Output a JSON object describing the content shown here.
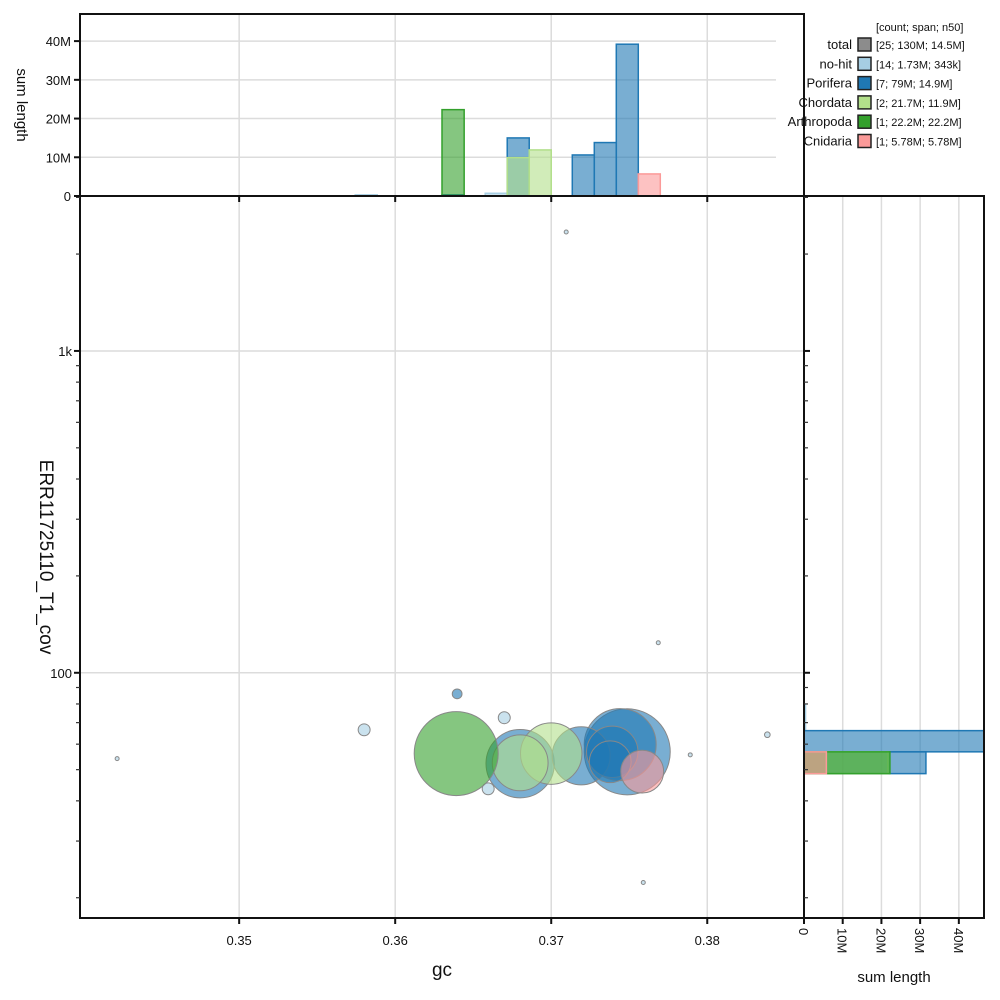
{
  "chart_data": {
    "type": "scatter",
    "xlabel": "gc",
    "ylabel": "ERR11725110_T1_cov",
    "xlim": [
      0.3398,
      0.3862
    ],
    "ylim": [
      17.3,
      3030
    ],
    "yscale": "log",
    "x_ticks": [
      "0.35",
      "0.36",
      "0.37",
      "0.38"
    ],
    "x_tick_values": [
      0.35,
      0.36,
      0.37,
      0.38
    ],
    "y_ticks": [
      "100",
      "1k"
    ],
    "y_tick_values": [
      100,
      1000
    ],
    "grid": true,
    "top_histogram": {
      "ylabel": "sum length",
      "ylim": [
        0,
        47000000
      ],
      "y_ticks": [
        "0",
        "10M",
        "20M",
        "30M",
        "40M"
      ],
      "y_tick_values": [
        0,
        10000000,
        20000000,
        30000000,
        40000000
      ]
    },
    "right_histogram": {
      "xlabel": "sum length",
      "xlim": [
        0,
        46500000
      ],
      "x_ticks": [
        "0",
        "10M",
        "20M",
        "30M",
        "40M"
      ],
      "x_tick_values": [
        0,
        10000000,
        20000000,
        30000000,
        40000000
      ]
    },
    "legend": {
      "placement": "top-right",
      "header": "[count; span; n50]",
      "entries": [
        {
          "name": "total",
          "stats": "[25; 130M; 14.5M]",
          "color": "#8c8c8c"
        },
        {
          "name": "no-hit",
          "stats": "[14; 1.73M; 343k]",
          "color": "#a6cee3"
        },
        {
          "name": "Porifera",
          "stats": "[7; 79M; 14.9M]",
          "color": "#1f78b4"
        },
        {
          "name": "Chordata",
          "stats": "[2; 21.7M; 11.9M]",
          "color": "#b2df8a"
        },
        {
          "name": "Arthropoda",
          "stats": "[1; 22.2M; 22.2M]",
          "color": "#33a02c"
        },
        {
          "name": "Cnidaria",
          "stats": "[1; 5.78M; 5.78M]",
          "color": "#fb9a99"
        }
      ]
    },
    "series": [
      {
        "name": "no-hit",
        "color": "#a6cee3",
        "points": [
          [
            0.36699,
            72.5,
            450000
          ],
          [
            0.35801,
            66.5,
            450000
          ],
          [
            0.36596,
            43.6,
            450000
          ],
          [
            0.37096,
            2342,
            50000
          ],
          [
            0.37686,
            124,
            50000
          ],
          [
            0.38385,
            64.2,
            100000
          ],
          [
            0.37891,
            55.6,
            50000
          ],
          [
            0.3759,
            22.3,
            50000
          ],
          [
            0.34218,
            54.1,
            50000
          ]
        ],
        "gc_hist": [
          [
            0.35744,
            0.35885,
            300000
          ],
          [
            0.36577,
            0.36718,
            700000
          ]
        ],
        "cov_hist": [
          [
            66.1,
            79.6,
            400000
          ],
          [
            48.6,
            56.8,
            200000
          ]
        ]
      },
      {
        "name": "Porifera",
        "color": "#1f78b4",
        "points": [
          [
            0.37487,
            56.8,
            23300000
          ],
          [
            0.37442,
            59.8,
            16300000
          ],
          [
            0.36801,
            52.2,
            14700000
          ],
          [
            0.37192,
            55.2,
            10600000
          ],
          [
            0.37391,
            56.8,
            8300000
          ],
          [
            0.37378,
            52.9,
            5500000
          ],
          [
            0.36397,
            86.0,
            300000
          ]
        ],
        "gc_hist": [
          [
            0.363,
            0.36442,
            300000
          ],
          [
            0.36718,
            0.36859,
            15000000
          ],
          [
            0.37135,
            0.37276,
            10600000
          ],
          [
            0.37276,
            0.37417,
            13800000
          ],
          [
            0.37417,
            0.37558,
            39200000
          ]
        ],
        "cov_hist": [
          [
            56.8,
            66.1,
            47500000
          ],
          [
            48.6,
            56.8,
            31500000
          ]
        ]
      },
      {
        "name": "Chordata",
        "color": "#b2df8a",
        "points": [
          [
            0.36801,
            52.5,
            9800000
          ],
          [
            0.37,
            56.1,
            11900000
          ]
        ],
        "gc_hist": [
          [
            0.36718,
            0.36859,
            9900000
          ],
          [
            0.36859,
            0.37,
            11900000
          ]
        ],
        "cov_hist": [
          [
            48.6,
            56.8,
            21700000
          ]
        ]
      },
      {
        "name": "Arthropoda",
        "color": "#33a02c",
        "points": [
          [
            0.36391,
            56.1,
            22200000
          ]
        ],
        "gc_hist": [
          [
            0.363,
            0.36442,
            22300000
          ]
        ],
        "cov_hist": [
          [
            48.6,
            56.8,
            22200000
          ]
        ]
      },
      {
        "name": "Cnidaria",
        "color": "#fb9a99",
        "points": [
          [
            0.37583,
            49.3,
            5780000
          ]
        ],
        "gc_hist": [
          [
            0.37558,
            0.37699,
            5700000
          ]
        ],
        "cov_hist": [
          [
            48.6,
            56.8,
            5780000
          ]
        ]
      }
    ]
  }
}
